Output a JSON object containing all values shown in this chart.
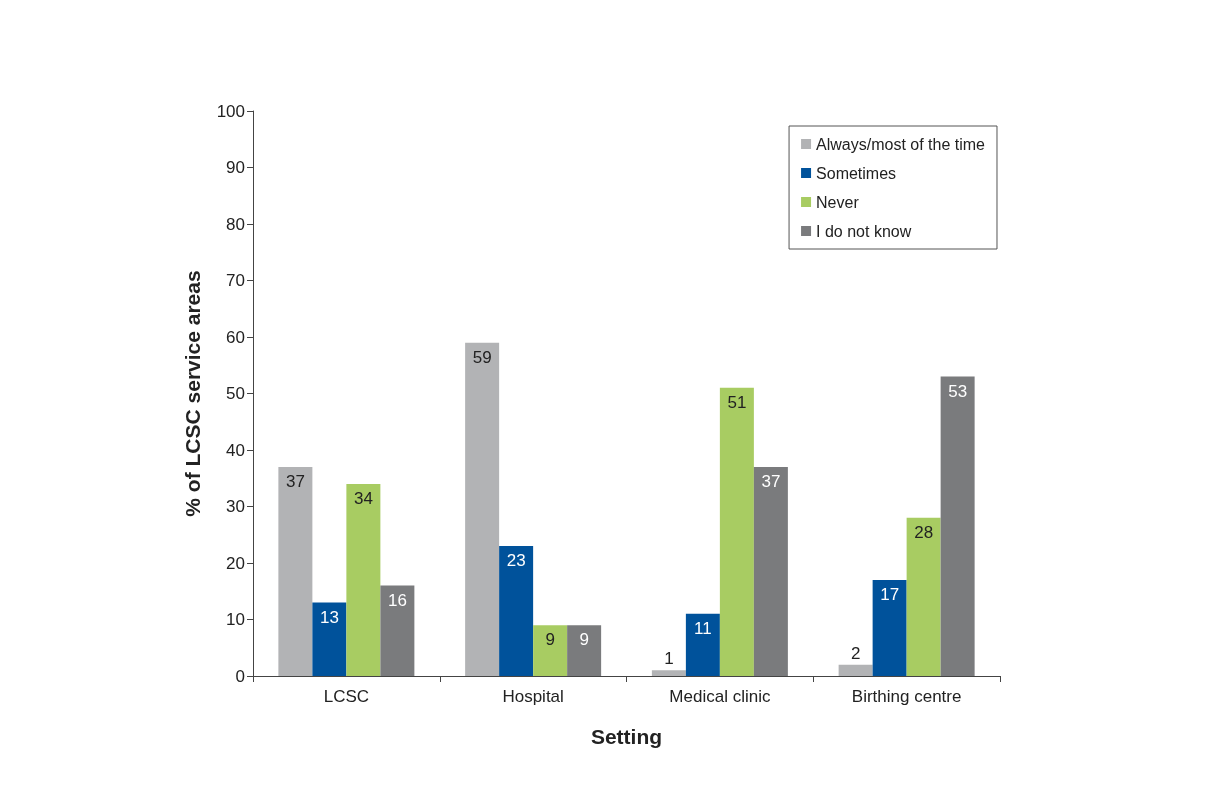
{
  "chart_data": {
    "type": "bar",
    "xlabel": "Setting",
    "ylabel": "% of LCSC service areas",
    "categories": [
      "LCSC",
      "Hospital",
      "Medical clinic",
      "Birthing centre"
    ],
    "series": [
      {
        "name": "Always/most of the time",
        "color": "#b2b3b5",
        "values": [
          37,
          59,
          1,
          2
        ]
      },
      {
        "name": "Sometimes",
        "color": "#00529b",
        "values": [
          13,
          23,
          11,
          17
        ]
      },
      {
        "name": "Never",
        "color": "#a8cc62",
        "values": [
          34,
          9,
          51,
          28
        ]
      },
      {
        "name": "I do not know",
        "color": "#7a7b7d",
        "values": [
          16,
          9,
          37,
          53
        ]
      }
    ],
    "ylim": [
      0,
      100
    ],
    "yticks": [
      0,
      10,
      20,
      30,
      40,
      50,
      60,
      70,
      80,
      90,
      100
    ],
    "grid": false,
    "legend": "top right",
    "data_labels": true
  }
}
